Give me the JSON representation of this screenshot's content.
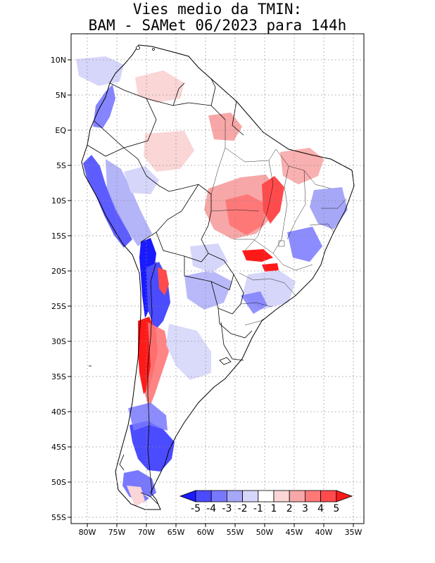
{
  "title": {
    "line1": "Vies medio da TMIN:",
    "line2": "BAM - SAMet 06/2023  para 144h"
  },
  "lat_labels": [
    "10N",
    "5N",
    "EQ",
    "5S",
    "10S",
    "15S",
    "20S",
    "25S",
    "30S",
    "35S",
    "40S",
    "45S",
    "50S",
    "55S"
  ],
  "lon_labels": [
    "80W",
    "75W",
    "70W",
    "65W",
    "60W",
    "55W",
    "50W",
    "45W",
    "40W",
    "35W"
  ],
  "colorbar": {
    "labels": [
      "-5",
      "-4",
      "-3",
      "-2",
      "-1",
      "1",
      "2",
      "3",
      "4",
      "5"
    ],
    "colors": [
      "#1a1aff",
      "#4b4bff",
      "#7878ff",
      "#a7a7f7",
      "#d6d6fa",
      "#ffffff",
      "#fad6d6",
      "#f7a7a7",
      "#ff7878",
      "#ff4b4b",
      "#ff1a1a"
    ]
  },
  "chart_data": {
    "type": "heatmap",
    "title": "Vies medio da TMIN: BAM - SAMet 06/2023 para 144h",
    "variable": "Vies medio da TMIN",
    "region": "South America",
    "lon_range": [
      -82,
      -34
    ],
    "lat_range": [
      -56,
      13
    ],
    "lon_ticks": [
      -80,
      -75,
      -70,
      -65,
      -60,
      -55,
      -50,
      -45,
      -40,
      -35
    ],
    "lat_ticks": [
      10,
      5,
      0,
      -5,
      -10,
      -15,
      -20,
      -25,
      -30,
      -35,
      -40,
      -45,
      -50,
      -55
    ],
    "color_levels": [
      -5,
      -4,
      -3,
      -2,
      -1,
      1,
      2,
      3,
      4,
      5
    ],
    "grid": "dotted"
  }
}
